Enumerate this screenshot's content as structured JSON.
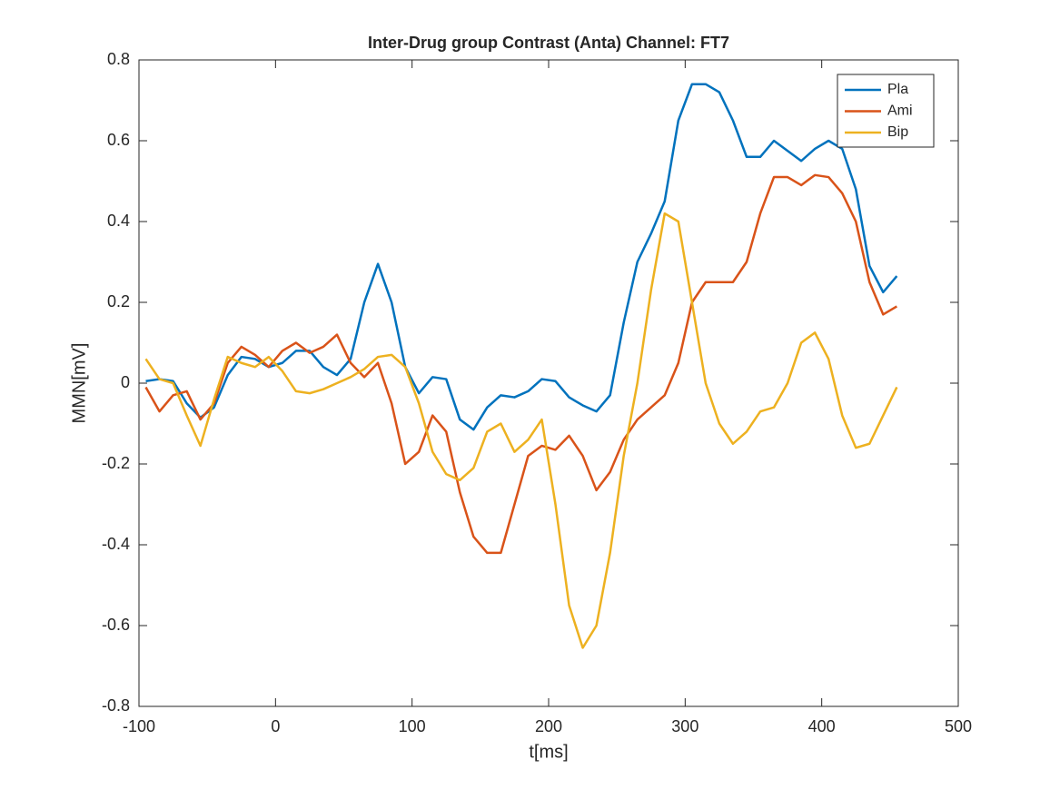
{
  "chart_data": {
    "type": "line",
    "title": "Inter-Drug group Contrast (Anta) Channel: FT7",
    "x_label": "t[ms]",
    "y_label": "MMN[mV]",
    "x": [
      -95,
      -85,
      -75,
      -65,
      -55,
      -45,
      -35,
      -25,
      -15,
      -5,
      5,
      15,
      25,
      35,
      45,
      55,
      65,
      75,
      85,
      95,
      105,
      115,
      125,
      135,
      145,
      155,
      165,
      175,
      185,
      195,
      205,
      215,
      225,
      235,
      245,
      255,
      265,
      275,
      285,
      295,
      305,
      315,
      325,
      335,
      345,
      355,
      365,
      375,
      385,
      395,
      405,
      415,
      425,
      435,
      445,
      455
    ],
    "series": [
      {
        "name": "Pla",
        "color": "#0072bd",
        "values": [
          0.005,
          0.01,
          0.005,
          -0.05,
          -0.085,
          -0.06,
          0.02,
          0.065,
          0.06,
          0.04,
          0.05,
          0.08,
          0.08,
          0.04,
          0.02,
          0.06,
          0.2,
          0.295,
          0.2,
          0.04,
          -0.025,
          0.015,
          0.01,
          -0.09,
          -0.115,
          -0.06,
          -0.03,
          -0.035,
          -0.02,
          0.01,
          0.005,
          -0.035,
          -0.055,
          -0.07,
          -0.03,
          0.15,
          0.3,
          0.37,
          0.45,
          0.65,
          0.74,
          0.74,
          0.72,
          0.65,
          0.56,
          0.56,
          0.6,
          0.575,
          0.55,
          0.58,
          0.6,
          0.58,
          0.48,
          0.29,
          0.225,
          0.265
        ]
      },
      {
        "name": "Ami",
        "color": "#d95319",
        "values": [
          -0.01,
          -0.07,
          -0.03,
          -0.02,
          -0.09,
          -0.05,
          0.05,
          0.09,
          0.07,
          0.04,
          0.08,
          0.1,
          0.075,
          0.09,
          0.12,
          0.05,
          0.015,
          0.05,
          -0.05,
          -0.2,
          -0.17,
          -0.08,
          -0.12,
          -0.27,
          -0.38,
          -0.42,
          -0.42,
          -0.3,
          -0.18,
          -0.155,
          -0.165,
          -0.13,
          -0.18,
          -0.265,
          -0.22,
          -0.14,
          -0.09,
          -0.06,
          -0.03,
          0.05,
          0.2,
          0.25,
          0.25,
          0.25,
          0.3,
          0.42,
          0.51,
          0.51,
          0.49,
          0.515,
          0.51,
          0.47,
          0.4,
          0.25,
          0.17,
          0.19
        ]
      },
      {
        "name": "Bip",
        "color": "#edb120",
        "values": [
          0.06,
          0.01,
          0.0,
          -0.08,
          -0.155,
          -0.04,
          0.065,
          0.05,
          0.04,
          0.065,
          0.03,
          -0.02,
          -0.025,
          -0.015,
          0.0,
          0.015,
          0.035,
          0.065,
          0.07,
          0.04,
          -0.05,
          -0.17,
          -0.225,
          -0.24,
          -0.21,
          -0.12,
          -0.1,
          -0.17,
          -0.14,
          -0.09,
          -0.3,
          -0.55,
          -0.655,
          -0.6,
          -0.42,
          -0.18,
          0.0,
          0.23,
          0.42,
          0.4,
          0.2,
          0.0,
          -0.1,
          -0.15,
          -0.12,
          -0.07,
          -0.06,
          0.0,
          0.1,
          0.125,
          0.06,
          -0.08,
          -0.16,
          -0.15,
          -0.08,
          -0.01
        ]
      }
    ],
    "xlim": [
      -100,
      500
    ],
    "xticks": [
      -100,
      0,
      100,
      200,
      300,
      400,
      500
    ],
    "ylim": [
      -0.8,
      0.8
    ],
    "yticks": [
      -0.8,
      -0.6,
      -0.4,
      -0.2,
      0,
      0.2,
      0.4,
      0.6,
      0.8
    ],
    "grid": false,
    "legend": "northeast"
  }
}
